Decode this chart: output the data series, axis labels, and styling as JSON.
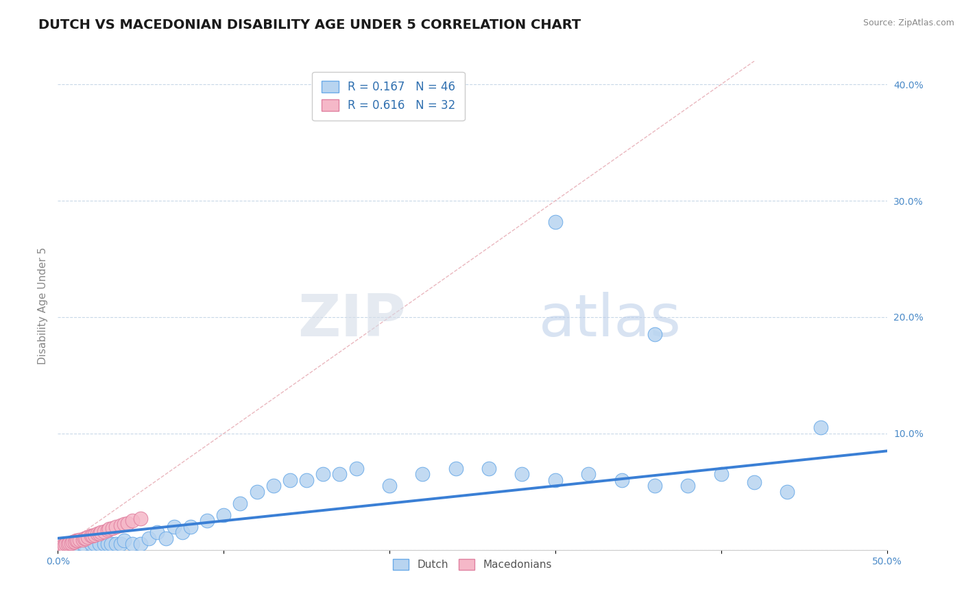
{
  "title": "DUTCH VS MACEDONIAN DISABILITY AGE UNDER 5 CORRELATION CHART",
  "source": "Source: ZipAtlas.com",
  "ylabel": "Disability Age Under 5",
  "xlim": [
    0.0,
    0.5
  ],
  "ylim": [
    0.0,
    0.42
  ],
  "ytick_vals": [
    0.0,
    0.1,
    0.2,
    0.3,
    0.4
  ],
  "ytick_labels": [
    "",
    "10.0%",
    "20.0%",
    "30.0%",
    "40.0%"
  ],
  "dutch_R": 0.167,
  "dutch_N": 46,
  "macedonian_R": 0.616,
  "macedonian_N": 32,
  "dutch_color": "#b8d4f0",
  "dutch_edge_color": "#6aaae8",
  "dutch_line_color": "#3a7fd5",
  "macedonian_color": "#f5b8c8",
  "macedonian_edge_color": "#e080a0",
  "macedonian_line_color": "#e06080",
  "diagonal_color": "#e8b0b8",
  "watermark_zip": "ZIP",
  "watermark_atlas": "atlas",
  "title_fontsize": 14,
  "axis_label_fontsize": 11,
  "legend_fontsize": 12,
  "dutch_points_x": [
    0.005,
    0.01,
    0.015,
    0.02,
    0.022,
    0.025,
    0.028,
    0.03,
    0.032,
    0.035,
    0.038,
    0.04,
    0.045,
    0.05,
    0.055,
    0.06,
    0.065,
    0.07,
    0.075,
    0.08,
    0.09,
    0.1,
    0.11,
    0.12,
    0.13,
    0.14,
    0.15,
    0.16,
    0.17,
    0.18,
    0.2,
    0.22,
    0.24,
    0.26,
    0.28,
    0.3,
    0.32,
    0.34,
    0.36,
    0.38,
    0.4,
    0.42,
    0.44,
    0.46,
    0.36,
    0.3
  ],
  "dutch_points_y": [
    0.005,
    0.005,
    0.005,
    0.005,
    0.005,
    0.005,
    0.005,
    0.005,
    0.005,
    0.005,
    0.005,
    0.008,
    0.005,
    0.005,
    0.01,
    0.015,
    0.01,
    0.02,
    0.015,
    0.02,
    0.025,
    0.03,
    0.04,
    0.05,
    0.055,
    0.06,
    0.06,
    0.065,
    0.065,
    0.07,
    0.055,
    0.065,
    0.07,
    0.07,
    0.065,
    0.06,
    0.065,
    0.06,
    0.055,
    0.055,
    0.065,
    0.058,
    0.05,
    0.105,
    0.185,
    0.282
  ],
  "macedonian_points_x": [
    0.002,
    0.003,
    0.004,
    0.005,
    0.006,
    0.007,
    0.008,
    0.009,
    0.01,
    0.011,
    0.012,
    0.013,
    0.015,
    0.016,
    0.017,
    0.018,
    0.02,
    0.021,
    0.022,
    0.024,
    0.025,
    0.026,
    0.028,
    0.03,
    0.031,
    0.033,
    0.035,
    0.038,
    0.04,
    0.042,
    0.045,
    0.05
  ],
  "macedonian_points_y": [
    0.003,
    0.004,
    0.004,
    0.005,
    0.005,
    0.006,
    0.006,
    0.007,
    0.007,
    0.008,
    0.008,
    0.009,
    0.009,
    0.01,
    0.01,
    0.011,
    0.012,
    0.012,
    0.013,
    0.014,
    0.014,
    0.015,
    0.016,
    0.017,
    0.018,
    0.019,
    0.02,
    0.021,
    0.022,
    0.023,
    0.025,
    0.027
  ],
  "dutch_line_x": [
    0.0,
    0.5
  ],
  "dutch_line_y": [
    0.01,
    0.085
  ],
  "macedonian_line_x": [
    0.0,
    0.085
  ],
  "macedonian_line_y": [
    0.001,
    0.028
  ]
}
